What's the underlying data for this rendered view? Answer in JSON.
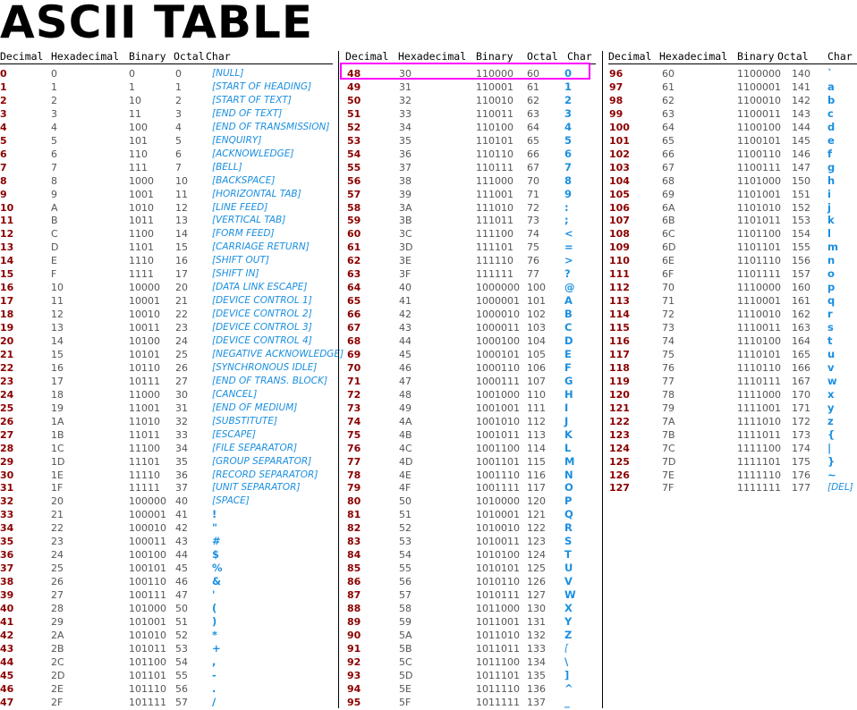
{
  "title": "ASCII TABLE",
  "headers": [
    "Decimal",
    "Hexadecimal",
    "Binary",
    "Octal",
    "Char"
  ],
  "highlighted_code": 48,
  "colors": {
    "decimal": "#8b0000",
    "char": "#1a8fe0",
    "highlight": "#ff00ff"
  },
  "columns": [
    {
      "rows": [
        {
          "dec": "0",
          "hex": "0",
          "bin": "0",
          "oct": "0",
          "char": "[NULL]"
        },
        {
          "dec": "1",
          "hex": "1",
          "bin": "1",
          "oct": "1",
          "char": "[START OF HEADING]"
        },
        {
          "dec": "2",
          "hex": "2",
          "bin": "10",
          "oct": "2",
          "char": "[START OF TEXT]"
        },
        {
          "dec": "3",
          "hex": "3",
          "bin": "11",
          "oct": "3",
          "char": "[END OF TEXT]"
        },
        {
          "dec": "4",
          "hex": "4",
          "bin": "100",
          "oct": "4",
          "char": "[END OF TRANSMISSION]"
        },
        {
          "dec": "5",
          "hex": "5",
          "bin": "101",
          "oct": "5",
          "char": "[ENQUIRY]"
        },
        {
          "dec": "6",
          "hex": "6",
          "bin": "110",
          "oct": "6",
          "char": "[ACKNOWLEDGE]"
        },
        {
          "dec": "7",
          "hex": "7",
          "bin": "111",
          "oct": "7",
          "char": "[BELL]"
        },
        {
          "dec": "8",
          "hex": "8",
          "bin": "1000",
          "oct": "10",
          "char": "[BACKSPACE]"
        },
        {
          "dec": "9",
          "hex": "9",
          "bin": "1001",
          "oct": "11",
          "char": "[HORIZONTAL TAB]"
        },
        {
          "dec": "10",
          "hex": "A",
          "bin": "1010",
          "oct": "12",
          "char": "[LINE FEED]"
        },
        {
          "dec": "11",
          "hex": "B",
          "bin": "1011",
          "oct": "13",
          "char": "[VERTICAL TAB]"
        },
        {
          "dec": "12",
          "hex": "C",
          "bin": "1100",
          "oct": "14",
          "char": "[FORM FEED]"
        },
        {
          "dec": "13",
          "hex": "D",
          "bin": "1101",
          "oct": "15",
          "char": "[CARRIAGE RETURN]"
        },
        {
          "dec": "14",
          "hex": "E",
          "bin": "1110",
          "oct": "16",
          "char": "[SHIFT OUT]"
        },
        {
          "dec": "15",
          "hex": "F",
          "bin": "1111",
          "oct": "17",
          "char": "[SHIFT IN]"
        },
        {
          "dec": "16",
          "hex": "10",
          "bin": "10000",
          "oct": "20",
          "char": "[DATA LINK ESCAPE]"
        },
        {
          "dec": "17",
          "hex": "11",
          "bin": "10001",
          "oct": "21",
          "char": "[DEVICE CONTROL 1]"
        },
        {
          "dec": "18",
          "hex": "12",
          "bin": "10010",
          "oct": "22",
          "char": "[DEVICE CONTROL 2]"
        },
        {
          "dec": "19",
          "hex": "13",
          "bin": "10011",
          "oct": "23",
          "char": "[DEVICE CONTROL 3]"
        },
        {
          "dec": "20",
          "hex": "14",
          "bin": "10100",
          "oct": "24",
          "char": "[DEVICE CONTROL 4]"
        },
        {
          "dec": "21",
          "hex": "15",
          "bin": "10101",
          "oct": "25",
          "char": "[NEGATIVE ACKNOWLEDGE]"
        },
        {
          "dec": "22",
          "hex": "16",
          "bin": "10110",
          "oct": "26",
          "char": "[SYNCHRONOUS IDLE]"
        },
        {
          "dec": "23",
          "hex": "17",
          "bin": "10111",
          "oct": "27",
          "char": "[END OF TRANS. BLOCK]"
        },
        {
          "dec": "24",
          "hex": "18",
          "bin": "11000",
          "oct": "30",
          "char": "[CANCEL]"
        },
        {
          "dec": "25",
          "hex": "19",
          "bin": "11001",
          "oct": "31",
          "char": "[END OF MEDIUM]"
        },
        {
          "dec": "26",
          "hex": "1A",
          "bin": "11010",
          "oct": "32",
          "char": "[SUBSTITUTE]"
        },
        {
          "dec": "27",
          "hex": "1B",
          "bin": "11011",
          "oct": "33",
          "char": "[ESCAPE]"
        },
        {
          "dec": "28",
          "hex": "1C",
          "bin": "11100",
          "oct": "34",
          "char": "[FILE SEPARATOR]"
        },
        {
          "dec": "29",
          "hex": "1D",
          "bin": "11101",
          "oct": "35",
          "char": "[GROUP SEPARATOR]"
        },
        {
          "dec": "30",
          "hex": "1E",
          "bin": "11110",
          "oct": "36",
          "char": "[RECORD SEPARATOR]"
        },
        {
          "dec": "31",
          "hex": "1F",
          "bin": "11111",
          "oct": "37",
          "char": "[UNIT SEPARATOR]"
        },
        {
          "dec": "32",
          "hex": "20",
          "bin": "100000",
          "oct": "40",
          "char": "[SPACE]"
        },
        {
          "dec": "33",
          "hex": "21",
          "bin": "100001",
          "oct": "41",
          "char": "!"
        },
        {
          "dec": "34",
          "hex": "22",
          "bin": "100010",
          "oct": "42",
          "char": "\""
        },
        {
          "dec": "35",
          "hex": "23",
          "bin": "100011",
          "oct": "43",
          "char": "#"
        },
        {
          "dec": "36",
          "hex": "24",
          "bin": "100100",
          "oct": "44",
          "char": "$"
        },
        {
          "dec": "37",
          "hex": "25",
          "bin": "100101",
          "oct": "45",
          "char": "%"
        },
        {
          "dec": "38",
          "hex": "26",
          "bin": "100110",
          "oct": "46",
          "char": "&"
        },
        {
          "dec": "39",
          "hex": "27",
          "bin": "100111",
          "oct": "47",
          "char": "'"
        },
        {
          "dec": "40",
          "hex": "28",
          "bin": "101000",
          "oct": "50",
          "char": "("
        },
        {
          "dec": "41",
          "hex": "29",
          "bin": "101001",
          "oct": "51",
          "char": ")"
        },
        {
          "dec": "42",
          "hex": "2A",
          "bin": "101010",
          "oct": "52",
          "char": "*"
        },
        {
          "dec": "43",
          "hex": "2B",
          "bin": "101011",
          "oct": "53",
          "char": "+"
        },
        {
          "dec": "44",
          "hex": "2C",
          "bin": "101100",
          "oct": "54",
          "char": ","
        },
        {
          "dec": "45",
          "hex": "2D",
          "bin": "101101",
          "oct": "55",
          "char": "-"
        },
        {
          "dec": "46",
          "hex": "2E",
          "bin": "101110",
          "oct": "56",
          "char": "."
        },
        {
          "dec": "47",
          "hex": "2F",
          "bin": "101111",
          "oct": "57",
          "char": "/"
        }
      ]
    },
    {
      "rows": [
        {
          "dec": "48",
          "hex": "30",
          "bin": "110000",
          "oct": "60",
          "char": "0"
        },
        {
          "dec": "49",
          "hex": "31",
          "bin": "110001",
          "oct": "61",
          "char": "1"
        },
        {
          "dec": "50",
          "hex": "32",
          "bin": "110010",
          "oct": "62",
          "char": "2"
        },
        {
          "dec": "51",
          "hex": "33",
          "bin": "110011",
          "oct": "63",
          "char": "3"
        },
        {
          "dec": "52",
          "hex": "34",
          "bin": "110100",
          "oct": "64",
          "char": "4"
        },
        {
          "dec": "53",
          "hex": "35",
          "bin": "110101",
          "oct": "65",
          "char": "5"
        },
        {
          "dec": "54",
          "hex": "36",
          "bin": "110110",
          "oct": "66",
          "char": "6"
        },
        {
          "dec": "55",
          "hex": "37",
          "bin": "110111",
          "oct": "67",
          "char": "7"
        },
        {
          "dec": "56",
          "hex": "38",
          "bin": "111000",
          "oct": "70",
          "char": "8"
        },
        {
          "dec": "57",
          "hex": "39",
          "bin": "111001",
          "oct": "71",
          "char": "9"
        },
        {
          "dec": "58",
          "hex": "3A",
          "bin": "111010",
          "oct": "72",
          "char": ":"
        },
        {
          "dec": "59",
          "hex": "3B",
          "bin": "111011",
          "oct": "73",
          "char": ";"
        },
        {
          "dec": "60",
          "hex": "3C",
          "bin": "111100",
          "oct": "74",
          "char": "<"
        },
        {
          "dec": "61",
          "hex": "3D",
          "bin": "111101",
          "oct": "75",
          "char": "="
        },
        {
          "dec": "62",
          "hex": "3E",
          "bin": "111110",
          "oct": "76",
          "char": ">"
        },
        {
          "dec": "63",
          "hex": "3F",
          "bin": "111111",
          "oct": "77",
          "char": "?"
        },
        {
          "dec": "64",
          "hex": "40",
          "bin": "1000000",
          "oct": "100",
          "char": "@"
        },
        {
          "dec": "65",
          "hex": "41",
          "bin": "1000001",
          "oct": "101",
          "char": "A"
        },
        {
          "dec": "66",
          "hex": "42",
          "bin": "1000010",
          "oct": "102",
          "char": "B"
        },
        {
          "dec": "67",
          "hex": "43",
          "bin": "1000011",
          "oct": "103",
          "char": "C"
        },
        {
          "dec": "68",
          "hex": "44",
          "bin": "1000100",
          "oct": "104",
          "char": "D"
        },
        {
          "dec": "69",
          "hex": "45",
          "bin": "1000101",
          "oct": "105",
          "char": "E"
        },
        {
          "dec": "70",
          "hex": "46",
          "bin": "1000110",
          "oct": "106",
          "char": "F"
        },
        {
          "dec": "71",
          "hex": "47",
          "bin": "1000111",
          "oct": "107",
          "char": "G"
        },
        {
          "dec": "72",
          "hex": "48",
          "bin": "1001000",
          "oct": "110",
          "char": "H"
        },
        {
          "dec": "73",
          "hex": "49",
          "bin": "1001001",
          "oct": "111",
          "char": "I"
        },
        {
          "dec": "74",
          "hex": "4A",
          "bin": "1001010",
          "oct": "112",
          "char": "J"
        },
        {
          "dec": "75",
          "hex": "4B",
          "bin": "1001011",
          "oct": "113",
          "char": "K"
        },
        {
          "dec": "76",
          "hex": "4C",
          "bin": "1001100",
          "oct": "114",
          "char": "L"
        },
        {
          "dec": "77",
          "hex": "4D",
          "bin": "1001101",
          "oct": "115",
          "char": "M"
        },
        {
          "dec": "78",
          "hex": "4E",
          "bin": "1001110",
          "oct": "116",
          "char": "N"
        },
        {
          "dec": "79",
          "hex": "4F",
          "bin": "1001111",
          "oct": "117",
          "char": "O"
        },
        {
          "dec": "80",
          "hex": "50",
          "bin": "1010000",
          "oct": "120",
          "char": "P"
        },
        {
          "dec": "81",
          "hex": "51",
          "bin": "1010001",
          "oct": "121",
          "char": "Q"
        },
        {
          "dec": "82",
          "hex": "52",
          "bin": "1010010",
          "oct": "122",
          "char": "R"
        },
        {
          "dec": "83",
          "hex": "53",
          "bin": "1010011",
          "oct": "123",
          "char": "S"
        },
        {
          "dec": "84",
          "hex": "54",
          "bin": "1010100",
          "oct": "124",
          "char": "T"
        },
        {
          "dec": "85",
          "hex": "55",
          "bin": "1010101",
          "oct": "125",
          "char": "U"
        },
        {
          "dec": "86",
          "hex": "56",
          "bin": "1010110",
          "oct": "126",
          "char": "V"
        },
        {
          "dec": "87",
          "hex": "57",
          "bin": "1010111",
          "oct": "127",
          "char": "W"
        },
        {
          "dec": "88",
          "hex": "58",
          "bin": "1011000",
          "oct": "130",
          "char": "X"
        },
        {
          "dec": "89",
          "hex": "59",
          "bin": "1011001",
          "oct": "131",
          "char": "Y"
        },
        {
          "dec": "90",
          "hex": "5A",
          "bin": "1011010",
          "oct": "132",
          "char": "Z"
        },
        {
          "dec": "91",
          "hex": "5B",
          "bin": "1011011",
          "oct": "133",
          "char": "["
        },
        {
          "dec": "92",
          "hex": "5C",
          "bin": "1011100",
          "oct": "134",
          "char": "\\"
        },
        {
          "dec": "93",
          "hex": "5D",
          "bin": "1011101",
          "oct": "135",
          "char": "]"
        },
        {
          "dec": "94",
          "hex": "5E",
          "bin": "1011110",
          "oct": "136",
          "char": "^"
        },
        {
          "dec": "95",
          "hex": "5F",
          "bin": "1011111",
          "oct": "137",
          "char": "_"
        }
      ]
    },
    {
      "rows": [
        {
          "dec": "96",
          "hex": "60",
          "bin": "1100000",
          "oct": "140",
          "char": "`"
        },
        {
          "dec": "97",
          "hex": "61",
          "bin": "1100001",
          "oct": "141",
          "char": "a"
        },
        {
          "dec": "98",
          "hex": "62",
          "bin": "1100010",
          "oct": "142",
          "char": "b"
        },
        {
          "dec": "99",
          "hex": "63",
          "bin": "1100011",
          "oct": "143",
          "char": "c"
        },
        {
          "dec": "100",
          "hex": "64",
          "bin": "1100100",
          "oct": "144",
          "char": "d"
        },
        {
          "dec": "101",
          "hex": "65",
          "bin": "1100101",
          "oct": "145",
          "char": "e"
        },
        {
          "dec": "102",
          "hex": "66",
          "bin": "1100110",
          "oct": "146",
          "char": "f"
        },
        {
          "dec": "103",
          "hex": "67",
          "bin": "1100111",
          "oct": "147",
          "char": "g"
        },
        {
          "dec": "104",
          "hex": "68",
          "bin": "1101000",
          "oct": "150",
          "char": "h"
        },
        {
          "dec": "105",
          "hex": "69",
          "bin": "1101001",
          "oct": "151",
          "char": "i"
        },
        {
          "dec": "106",
          "hex": "6A",
          "bin": "1101010",
          "oct": "152",
          "char": "j"
        },
        {
          "dec": "107",
          "hex": "6B",
          "bin": "1101011",
          "oct": "153",
          "char": "k"
        },
        {
          "dec": "108",
          "hex": "6C",
          "bin": "1101100",
          "oct": "154",
          "char": "l"
        },
        {
          "dec": "109",
          "hex": "6D",
          "bin": "1101101",
          "oct": "155",
          "char": "m"
        },
        {
          "dec": "110",
          "hex": "6E",
          "bin": "1101110",
          "oct": "156",
          "char": "n"
        },
        {
          "dec": "111",
          "hex": "6F",
          "bin": "1101111",
          "oct": "157",
          "char": "o"
        },
        {
          "dec": "112",
          "hex": "70",
          "bin": "1110000",
          "oct": "160",
          "char": "p"
        },
        {
          "dec": "113",
          "hex": "71",
          "bin": "1110001",
          "oct": "161",
          "char": "q"
        },
        {
          "dec": "114",
          "hex": "72",
          "bin": "1110010",
          "oct": "162",
          "char": "r"
        },
        {
          "dec": "115",
          "hex": "73",
          "bin": "1110011",
          "oct": "163",
          "char": "s"
        },
        {
          "dec": "116",
          "hex": "74",
          "bin": "1110100",
          "oct": "164",
          "char": "t"
        },
        {
          "dec": "117",
          "hex": "75",
          "bin": "1110101",
          "oct": "165",
          "char": "u"
        },
        {
          "dec": "118",
          "hex": "76",
          "bin": "1110110",
          "oct": "166",
          "char": "v"
        },
        {
          "dec": "119",
          "hex": "77",
          "bin": "1110111",
          "oct": "167",
          "char": "w"
        },
        {
          "dec": "120",
          "hex": "78",
          "bin": "1111000",
          "oct": "170",
          "char": "x"
        },
        {
          "dec": "121",
          "hex": "79",
          "bin": "1111001",
          "oct": "171",
          "char": "y"
        },
        {
          "dec": "122",
          "hex": "7A",
          "bin": "1111010",
          "oct": "172",
          "char": "z"
        },
        {
          "dec": "123",
          "hex": "7B",
          "bin": "1111011",
          "oct": "173",
          "char": "{"
        },
        {
          "dec": "124",
          "hex": "7C",
          "bin": "1111100",
          "oct": "174",
          "char": "|"
        },
        {
          "dec": "125",
          "hex": "7D",
          "bin": "1111101",
          "oct": "175",
          "char": "}"
        },
        {
          "dec": "126",
          "hex": "7E",
          "bin": "1111110",
          "oct": "176",
          "char": "~"
        },
        {
          "dec": "127",
          "hex": "7F",
          "bin": "1111111",
          "oct": "177",
          "char": "[DEL]"
        }
      ]
    }
  ]
}
